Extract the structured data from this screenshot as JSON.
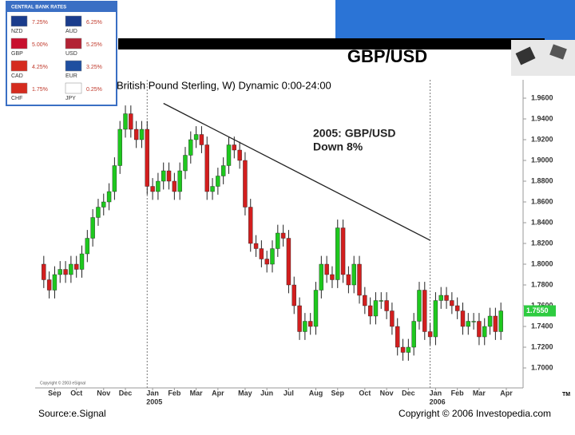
{
  "slide_title": "GBP/USD",
  "bank_rates": {
    "title": "CENTRAL BANK RATES",
    "rows": [
      [
        {
          "code": "NZD",
          "rate": "7.25%"
        },
        {
          "code": "AUD",
          "rate": "6.25%"
        }
      ],
      [
        {
          "code": "GBP",
          "rate": "5.00%"
        },
        {
          "code": "USD",
          "rate": "5.25%"
        }
      ],
      [
        {
          "code": "CAD",
          "rate": "4.25%"
        },
        {
          "code": "EUR",
          "rate": "3.25%"
        }
      ],
      [
        {
          "code": "CHF",
          "rate": "1.75%"
        },
        {
          "code": "JPY",
          "rate": "0.25%"
        }
      ]
    ]
  },
  "chart_data": {
    "type": "candlestick",
    "title": "British Pound Sterling, W) Dynamic 0:00-24:00",
    "annotation": [
      "2005: GBP/USD",
      "Down 8%"
    ],
    "up_color": "#1ec81e",
    "down_color": "#d21e1e",
    "ohlc": [
      [
        1.8,
        1.808,
        1.777,
        1.785
      ],
      [
        1.785,
        1.793,
        1.767,
        1.775
      ],
      [
        1.775,
        1.798,
        1.767,
        1.79
      ],
      [
        1.79,
        1.803,
        1.782,
        1.795
      ],
      [
        1.795,
        1.803,
        1.782,
        1.79
      ],
      [
        1.79,
        1.808,
        1.782,
        1.8
      ],
      [
        1.8,
        1.808,
        1.787,
        1.795
      ],
      [
        1.795,
        1.818,
        1.787,
        1.81
      ],
      [
        1.81,
        1.833,
        1.802,
        1.825
      ],
      [
        1.825,
        1.853,
        1.817,
        1.845
      ],
      [
        1.845,
        1.863,
        1.837,
        1.855
      ],
      [
        1.855,
        1.868,
        1.847,
        1.86
      ],
      [
        1.86,
        1.878,
        1.852,
        1.87
      ],
      [
        1.87,
        1.903,
        1.862,
        1.895
      ],
      [
        1.895,
        1.938,
        1.887,
        1.93
      ],
      [
        1.93,
        1.953,
        1.922,
        1.945
      ],
      [
        1.945,
        1.953,
        1.922,
        1.93
      ],
      [
        1.93,
        1.938,
        1.912,
        1.92
      ],
      [
        1.92,
        1.938,
        1.912,
        1.93
      ],
      [
        1.93,
        1.938,
        1.867,
        1.875
      ],
      [
        1.875,
        1.883,
        1.862,
        1.87
      ],
      [
        1.87,
        1.888,
        1.862,
        1.88
      ],
      [
        1.88,
        1.898,
        1.872,
        1.89
      ],
      [
        1.89,
        1.898,
        1.872,
        1.88
      ],
      [
        1.88,
        1.888,
        1.862,
        1.87
      ],
      [
        1.87,
        1.898,
        1.862,
        1.89
      ],
      [
        1.89,
        1.913,
        1.882,
        1.905
      ],
      [
        1.905,
        1.928,
        1.897,
        1.92
      ],
      [
        1.92,
        1.933,
        1.912,
        1.925
      ],
      [
        1.925,
        1.933,
        1.907,
        1.915
      ],
      [
        1.915,
        1.923,
        1.862,
        1.87
      ],
      [
        1.87,
        1.883,
        1.862,
        1.875
      ],
      [
        1.875,
        1.893,
        1.867,
        1.885
      ],
      [
        1.885,
        1.903,
        1.877,
        1.895
      ],
      [
        1.895,
        1.923,
        1.887,
        1.915
      ],
      [
        1.915,
        1.923,
        1.902,
        1.91
      ],
      [
        1.91,
        1.918,
        1.892,
        1.9
      ],
      [
        1.9,
        1.908,
        1.847,
        1.855
      ],
      [
        1.855,
        1.863,
        1.812,
        1.82
      ],
      [
        1.82,
        1.828,
        1.807,
        1.815
      ],
      [
        1.815,
        1.823,
        1.797,
        1.805
      ],
      [
        1.805,
        1.813,
        1.792,
        1.8
      ],
      [
        1.8,
        1.823,
        1.792,
        1.815
      ],
      [
        1.815,
        1.838,
        1.807,
        1.83
      ],
      [
        1.83,
        1.838,
        1.817,
        1.825
      ],
      [
        1.825,
        1.833,
        1.772,
        1.78
      ],
      [
        1.78,
        1.788,
        1.752,
        1.76
      ],
      [
        1.76,
        1.768,
        1.727,
        1.735
      ],
      [
        1.735,
        1.753,
        1.727,
        1.745
      ],
      [
        1.745,
        1.753,
        1.732,
        1.74
      ],
      [
        1.74,
        1.783,
        1.732,
        1.775
      ],
      [
        1.775,
        1.808,
        1.767,
        1.8
      ],
      [
        1.8,
        1.808,
        1.782,
        1.79
      ],
      [
        1.79,
        1.798,
        1.777,
        1.785
      ],
      [
        1.785,
        1.843,
        1.777,
        1.835
      ],
      [
        1.835,
        1.843,
        1.782,
        1.79
      ],
      [
        1.79,
        1.798,
        1.772,
        1.78
      ],
      [
        1.78,
        1.808,
        1.772,
        1.8
      ],
      [
        1.8,
        1.808,
        1.762,
        1.77
      ],
      [
        1.77,
        1.778,
        1.752,
        1.76
      ],
      [
        1.76,
        1.768,
        1.742,
        1.75
      ],
      [
        1.75,
        1.773,
        1.742,
        1.765
      ],
      [
        1.765,
        1.773,
        1.757,
        1.765
      ],
      [
        1.765,
        1.773,
        1.747,
        1.755
      ],
      [
        1.755,
        1.763,
        1.732,
        1.74
      ],
      [
        1.74,
        1.748,
        1.712,
        1.72
      ],
      [
        1.72,
        1.728,
        1.707,
        1.715
      ],
      [
        1.715,
        1.728,
        1.707,
        1.72
      ],
      [
        1.72,
        1.753,
        1.712,
        1.745
      ],
      [
        1.745,
        1.783,
        1.737,
        1.775
      ],
      [
        1.775,
        1.783,
        1.727,
        1.735
      ],
      [
        1.735,
        1.743,
        1.722,
        1.73
      ],
      [
        1.73,
        1.773,
        1.722,
        1.765
      ],
      [
        1.765,
        1.778,
        1.757,
        1.77
      ],
      [
        1.77,
        1.778,
        1.757,
        1.765
      ],
      [
        1.765,
        1.773,
        1.752,
        1.76
      ],
      [
        1.76,
        1.768,
        1.747,
        1.755
      ],
      [
        1.755,
        1.763,
        1.732,
        1.74
      ],
      [
        1.74,
        1.753,
        1.732,
        1.745
      ],
      [
        1.745,
        1.753,
        1.737,
        1.745
      ],
      [
        1.745,
        1.753,
        1.722,
        1.73
      ],
      [
        1.73,
        1.748,
        1.722,
        1.74
      ],
      [
        1.74,
        1.758,
        1.732,
        1.75
      ],
      [
        1.75,
        1.758,
        1.727,
        1.735
      ],
      [
        1.735,
        1.763,
        1.727,
        1.755
      ]
    ],
    "xlim": [
      -1,
      85
    ],
    "xticks": [
      {
        "value": 2,
        "label": "Sep"
      },
      {
        "value": 6,
        "label": "Oct"
      },
      {
        "value": 11,
        "label": "Nov"
      },
      {
        "value": 15,
        "label": "Dec"
      },
      {
        "value": 20,
        "label": "Jan"
      },
      {
        "value": 24,
        "label": "Feb"
      },
      {
        "value": 28,
        "label": "Mar"
      },
      {
        "value": 32,
        "label": "Apr"
      },
      {
        "value": 37,
        "label": "May"
      },
      {
        "value": 41,
        "label": "Jun"
      },
      {
        "value": 45,
        "label": "Jul"
      },
      {
        "value": 50,
        "label": "Aug"
      },
      {
        "value": 54,
        "label": "Sep"
      },
      {
        "value": 59,
        "label": "Oct"
      },
      {
        "value": 63,
        "label": "Nov"
      },
      {
        "value": 67,
        "label": "Dec"
      },
      {
        "value": 72,
        "label": "Jan"
      },
      {
        "value": 76,
        "label": "Feb"
      },
      {
        "value": 80,
        "label": "Mar"
      },
      {
        "value": 85,
        "label": "Apr"
      }
    ],
    "year_labels": [
      {
        "value": 19,
        "label": "2005"
      },
      {
        "value": 71,
        "label": "2006"
      }
    ],
    "ylim": [
      1.69,
      1.97
    ],
    "yticks": [
      {
        "value": 1.7,
        "label": "1.7000"
      },
      {
        "value": 1.72,
        "label": "1.7200"
      },
      {
        "value": 1.74,
        "label": "1.7400"
      },
      {
        "value": 1.76,
        "label": "1.7600"
      },
      {
        "value": 1.78,
        "label": "1.7800"
      },
      {
        "value": 1.8,
        "label": "1.8000"
      },
      {
        "value": 1.82,
        "label": "1.8200"
      },
      {
        "value": 1.84,
        "label": "1.8400"
      },
      {
        "value": 1.86,
        "label": "1.8600"
      },
      {
        "value": 1.88,
        "label": "1.8800"
      },
      {
        "value": 1.9,
        "label": "1.9000"
      },
      {
        "value": 1.92,
        "label": "1.9200"
      },
      {
        "value": 1.94,
        "label": "1.9400"
      },
      {
        "value": 1.96,
        "label": "1.9600"
      }
    ],
    "last_price": {
      "value": 1.755,
      "label": "1.7550"
    },
    "trendline": {
      "x": [
        22,
        71
      ],
      "y": [
        1.955,
        1.823
      ]
    },
    "source": "Source:e.Signal",
    "copyright": "Copyright © 2006 Investopedia.com",
    "small_copyright": "Copyright © 2003 eSignal",
    "trademark": "TM"
  }
}
